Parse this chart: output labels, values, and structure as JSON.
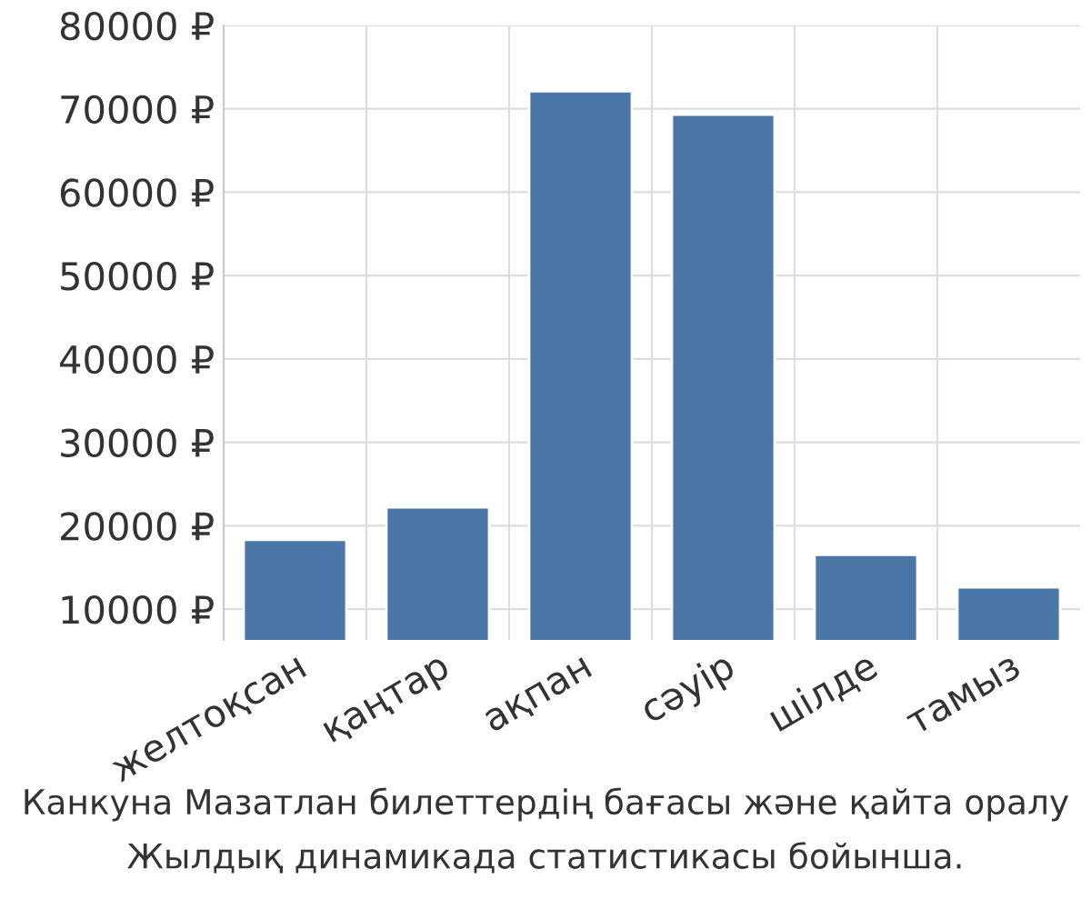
{
  "chart_data": {
    "type": "bar",
    "categories": [
      "желтоқсан",
      "қаңтар",
      "ақпан",
      "сәуір",
      "шілде",
      "тамыз"
    ],
    "values": [
      18300,
      22200,
      72100,
      69300,
      16500,
      12600
    ],
    "color": "#4a76a8",
    "ylim": [
      6300,
      80000
    ],
    "yticks": [
      {
        "value": 10000,
        "label": "10000 ₽"
      },
      {
        "value": 20000,
        "label": "20000 ₽"
      },
      {
        "value": 30000,
        "label": "30000 ₽"
      },
      {
        "value": 40000,
        "label": "40000 ₽"
      },
      {
        "value": 50000,
        "label": "50000 ₽"
      },
      {
        "value": 60000,
        "label": "60000 ₽"
      },
      {
        "value": 70000,
        "label": "70000 ₽"
      },
      {
        "value": 80000,
        "label": "80000 ₽"
      }
    ],
    "grid": true,
    "annotations": [
      "Канкуна Мазатлан билеттердің бағасы және қайта оралу",
      "Жылдық динамикада статистикасы бойынша."
    ]
  }
}
